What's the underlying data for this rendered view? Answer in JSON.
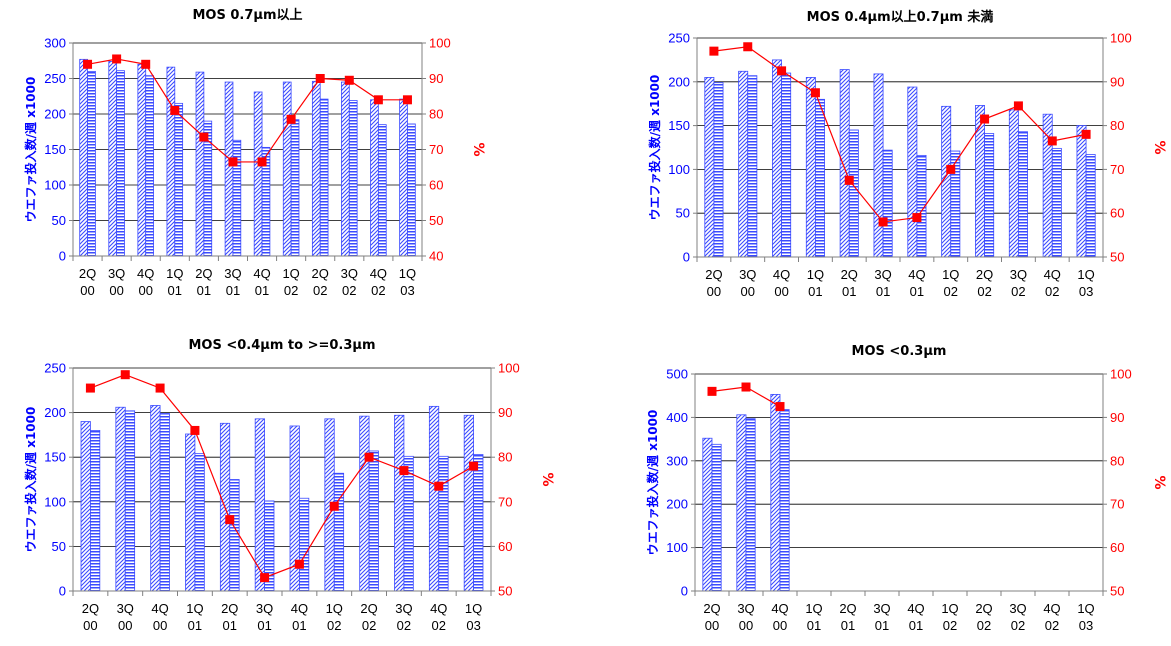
{
  "colors": {
    "bars": "#3b4bff",
    "rate": "#ff0000",
    "grid": "#000000",
    "left_axis": "#0000ff",
    "right_axis": "#ff0000"
  },
  "chart_data": [
    {
      "type": "bar",
      "title": "MOS 0.7µm以上",
      "ylabel": "ウエファ投入数/週 x1000",
      "y2label": "%",
      "categories": [
        "2Q 00",
        "3Q 00",
        "4Q 00",
        "1Q 01",
        "2Q 01",
        "3Q 01",
        "4Q 01",
        "1Q 02",
        "2Q 02",
        "3Q 02",
        "4Q 02",
        "1Q 03"
      ],
      "ylim": [
        0,
        300
      ],
      "yticks": [
        0,
        50,
        100,
        150,
        200,
        250,
        300
      ],
      "y2lim": [
        40,
        100
      ],
      "y2ticks": [
        40,
        50,
        60,
        70,
        80,
        90,
        100
      ],
      "grid": true,
      "legend": "none",
      "series": [
        {
          "kind": "bar",
          "pattern": "diagonal",
          "values": [
            277,
            274,
            270,
            266,
            259,
            245,
            231,
            245,
            246,
            245,
            220,
            221
          ]
        },
        {
          "kind": "bar",
          "pattern": "horizontal",
          "values": [
            260,
            261,
            254,
            215,
            190,
            163,
            153,
            192,
            221,
            219,
            185,
            186
          ]
        },
        {
          "kind": "line",
          "axis": "right",
          "values": [
            94,
            95.5,
            94,
            81,
            73.5,
            66.5,
            66.5,
            78.5,
            90,
            89.5,
            84,
            84
          ]
        }
      ]
    },
    {
      "type": "bar",
      "title": "MOS 0.4µm以上0.7µm 未満",
      "ylabel": "ウエファ投入数/週 x1000",
      "y2label": "%",
      "categories": [
        "2Q 00",
        "3Q 00",
        "4Q 00",
        "1Q 01",
        "2Q 01",
        "3Q 01",
        "4Q 01",
        "1Q 02",
        "2Q 02",
        "3Q 02",
        "4Q 02",
        "1Q 03"
      ],
      "ylim": [
        0,
        250
      ],
      "yticks": [
        0,
        50,
        100,
        150,
        200,
        250
      ],
      "y2lim": [
        50,
        100
      ],
      "y2ticks": [
        50,
        60,
        70,
        80,
        90,
        100
      ],
      "grid": true,
      "legend": "none",
      "series": [
        {
          "kind": "bar",
          "pattern": "diagonal",
          "values": [
            205,
            212,
            225,
            205,
            214,
            209,
            194,
            172,
            173,
            168,
            163,
            150
          ]
        },
        {
          "kind": "bar",
          "pattern": "horizontal",
          "values": [
            199,
            207,
            210,
            180,
            145,
            122,
            116,
            121,
            141,
            143,
            124,
            117
          ]
        },
        {
          "kind": "line",
          "axis": "right",
          "values": [
            97,
            98,
            92.5,
            87.5,
            67.5,
            58,
            59,
            70,
            81.5,
            84.5,
            76.5,
            78
          ]
        }
      ]
    },
    {
      "type": "bar",
      "title": "MOS <0.4µm to >=0.3µm",
      "ylabel": "ウエファ投入数/週 x1000",
      "y2label": "%",
      "categories": [
        "2Q 00",
        "3Q 00",
        "4Q 00",
        "1Q 01",
        "2Q 01",
        "3Q 01",
        "4Q 01",
        "1Q 02",
        "2Q 02",
        "3Q 02",
        "4Q 02",
        "1Q 03"
      ],
      "ylim": [
        0,
        250
      ],
      "yticks": [
        0,
        50,
        100,
        150,
        200,
        250
      ],
      "y2lim": [
        50,
        100
      ],
      "y2ticks": [
        50,
        60,
        70,
        80,
        90,
        100
      ],
      "grid": true,
      "legend": "none",
      "series": [
        {
          "kind": "bar",
          "pattern": "diagonal",
          "values": [
            190,
            206,
            208,
            176,
            188,
            193,
            185,
            193,
            196,
            197,
            207,
            197
          ]
        },
        {
          "kind": "bar",
          "pattern": "horizontal",
          "values": [
            180,
            202,
            199,
            154,
            125,
            101,
            104,
            132,
            157,
            151,
            151,
            153
          ]
        },
        {
          "kind": "line",
          "axis": "right",
          "values": [
            95.5,
            98.5,
            95.5,
            86,
            66,
            53,
            56,
            69,
            80,
            77,
            73.5,
            78
          ]
        }
      ]
    },
    {
      "type": "bar",
      "title": "MOS <0.3µm",
      "ylabel": "ウエファ投入数/週 x1000",
      "y2label": "%",
      "categories": [
        "2Q 00",
        "3Q 00",
        "4Q 00",
        "1Q 01",
        "2Q 01",
        "3Q 01",
        "4Q 01",
        "1Q 02",
        "2Q 02",
        "3Q 02",
        "4Q 02",
        "1Q 03"
      ],
      "ylim": [
        0,
        500
      ],
      "yticks": [
        0,
        100,
        200,
        300,
        400,
        500
      ],
      "y2lim": [
        50,
        100
      ],
      "y2ticks": [
        50,
        60,
        70,
        80,
        90,
        100
      ],
      "grid": true,
      "legend": "none",
      "series": [
        {
          "kind": "bar",
          "pattern": "diagonal",
          "values": [
            352,
            406,
            453,
            null,
            null,
            null,
            null,
            null,
            null,
            null,
            null,
            null
          ]
        },
        {
          "kind": "bar",
          "pattern": "horizontal",
          "values": [
            338,
            397,
            418,
            null,
            null,
            null,
            null,
            null,
            null,
            null,
            null,
            null
          ]
        },
        {
          "kind": "line",
          "axis": "right",
          "values": [
            96,
            97,
            92.5,
            null,
            null,
            null,
            null,
            null,
            null,
            null,
            null,
            null
          ]
        }
      ]
    }
  ]
}
